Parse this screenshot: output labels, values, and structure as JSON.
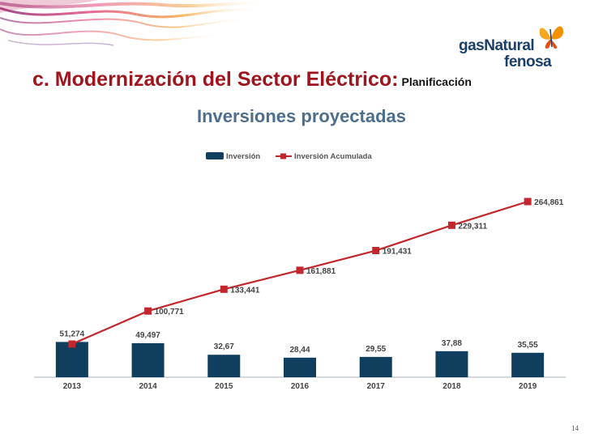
{
  "slide": {
    "title_main": "c. Modernización del Sector Eléctrico:",
    "title_sub": "Planificación",
    "page_number": "14"
  },
  "logo": {
    "line1": "gasNatural",
    "line2": "fenosa",
    "icon": "butterfly-icon"
  },
  "colors": {
    "title_red": "#a0141e",
    "bar_navy": "#0f3e5e",
    "line_red": "#c1272d",
    "chart_title_blue": "#4d6e8c"
  },
  "chart_data": {
    "type": "bar",
    "title": "Inversiones proyectadas",
    "categories": [
      "2013",
      "2014",
      "2015",
      "2016",
      "2017",
      "2018",
      "2019"
    ],
    "series": [
      {
        "name": "Inversión",
        "type": "bar",
        "values": [
          51.274,
          49.497,
          32.67,
          28.44,
          29.55,
          37.88,
          35.55
        ],
        "labels": [
          "51,274",
          "49,497",
          "32,67",
          "28,44",
          "29,55",
          "37,88",
          "35,55"
        ]
      },
      {
        "name": "Inversión Acumulada",
        "type": "line",
        "values": [
          51.274,
          100.771,
          133.441,
          161.881,
          191.431,
          229.311,
          264.861
        ],
        "labels": [
          "51,274",
          "100,771",
          "133,441",
          "161,881",
          "191,431",
          "229,311",
          "264,861"
        ]
      }
    ],
    "legend_position": "top-center",
    "grid": false,
    "ylim": [
      0,
      270
    ]
  }
}
